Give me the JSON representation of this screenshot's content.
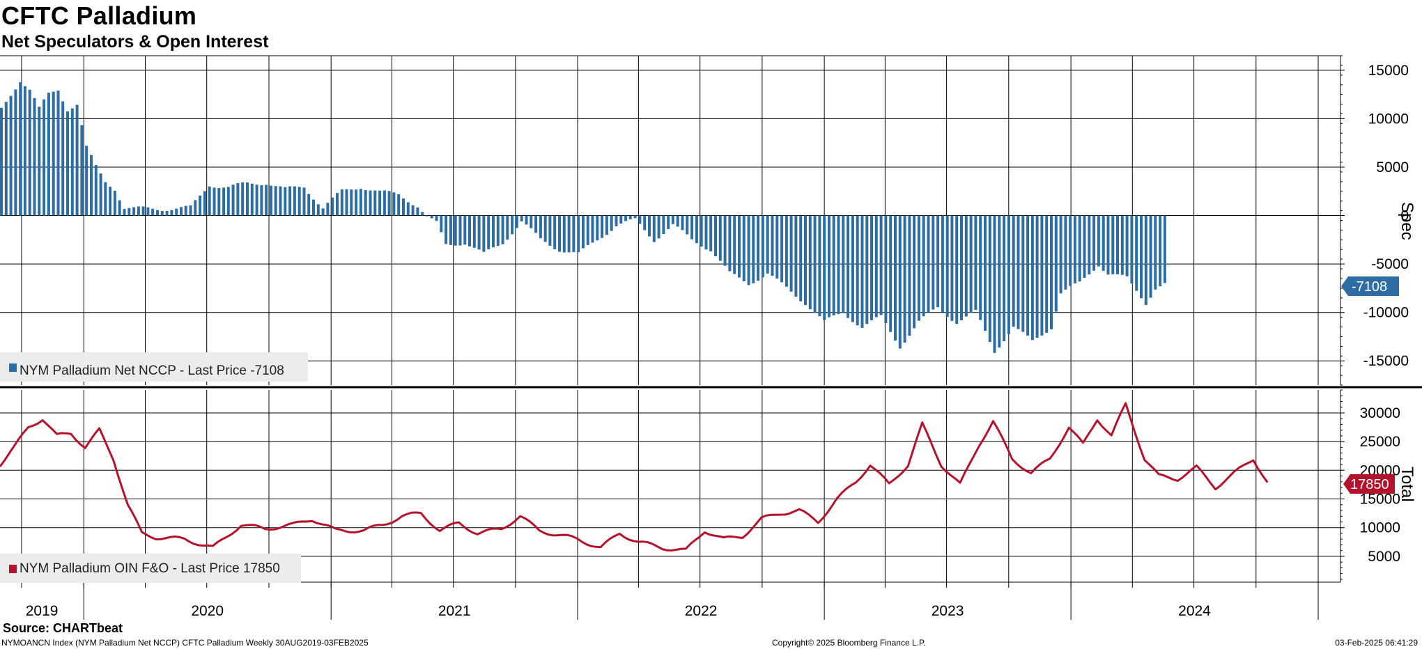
{
  "title": "CFTC Palladium",
  "subtitle": "Net Speculators & Open Interest",
  "source": "Source: CHARTbeat",
  "footer": {
    "left": "NYMOANCN Index (NYM Palladium Net NCCP) CFTC Palladium  Weekly 30AUG2019-03FEB2025",
    "center": "Copyright© 2025 Bloomberg Finance L.P.",
    "right": "03-Feb-2025 06:41:29"
  },
  "colors": {
    "spec": "#2e6da4",
    "total": "#b5122b",
    "grid": "#000000"
  },
  "chart_data": [
    {
      "type": "bar",
      "axis_label": "Spec",
      "legend": "NYM Palladium Net NCCP - Last Price -7108",
      "last_value": "-7108",
      "ylim": [
        -17500,
        16500
      ],
      "yticks": [
        15000,
        10000,
        5000,
        0,
        -5000,
        -10000,
        -15000
      ],
      "x_start": "2019-08-30",
      "x_end": "2025-02-03",
      "anchors": [
        [
          "2019-08-30",
          11000
        ],
        [
          "2019-09-13",
          12500
        ],
        [
          "2019-09-27",
          14000
        ],
        [
          "2019-10-11",
          13000
        ],
        [
          "2019-10-25",
          11000
        ],
        [
          "2019-11-08",
          12500
        ],
        [
          "2019-11-22",
          13000
        ],
        [
          "2019-12-06",
          11000
        ],
        [
          "2019-12-20",
          11500
        ],
        [
          "2020-01-03",
          7000
        ],
        [
          "2020-01-17",
          5000
        ],
        [
          "2020-01-31",
          3500
        ],
        [
          "2020-02-14",
          2800
        ],
        [
          "2020-02-28",
          800
        ],
        [
          "2020-03-13",
          700
        ],
        [
          "2020-04-24",
          700
        ],
        [
          "2020-06-05",
          800
        ],
        [
          "2020-06-19",
          2000
        ],
        [
          "2020-07-03",
          3200
        ],
        [
          "2020-07-31",
          2900
        ],
        [
          "2020-08-28",
          3300
        ],
        [
          "2020-09-25",
          3400
        ],
        [
          "2020-10-23",
          2700
        ],
        [
          "2020-11-20",
          3000
        ],
        [
          "2020-12-18",
          800
        ],
        [
          "2021-01-15",
          2500
        ],
        [
          "2021-02-12",
          3000
        ],
        [
          "2021-03-12",
          2400
        ],
        [
          "2021-04-09",
          2200
        ],
        [
          "2021-05-07",
          1000
        ],
        [
          "2021-05-21",
          -200
        ],
        [
          "2021-06-04",
          -800
        ],
        [
          "2021-06-18",
          -3000
        ],
        [
          "2021-07-16",
          -2800
        ],
        [
          "2021-08-13",
          -4000
        ],
        [
          "2021-09-10",
          -2800
        ],
        [
          "2021-10-08",
          -600
        ],
        [
          "2021-11-05",
          -2500
        ],
        [
          "2021-12-03",
          -3500
        ],
        [
          "2021-12-31",
          -4000
        ],
        [
          "2022-01-28",
          -2500
        ],
        [
          "2022-02-25",
          -1000
        ],
        [
          "2022-03-25",
          -500
        ],
        [
          "2022-04-22",
          -2500
        ],
        [
          "2022-05-20",
          -1000
        ],
        [
          "2022-06-17",
          -2500
        ],
        [
          "2022-07-15",
          -3500
        ],
        [
          "2022-08-12",
          -6000
        ],
        [
          "2022-09-09",
          -7000
        ],
        [
          "2022-10-07",
          -6000
        ],
        [
          "2022-11-04",
          -7500
        ],
        [
          "2022-12-02",
          -9000
        ],
        [
          "2022-12-30",
          -11000
        ],
        [
          "2023-01-27",
          -10000
        ],
        [
          "2023-02-24",
          -11500
        ],
        [
          "2023-03-24",
          -10500
        ],
        [
          "2023-04-21",
          -13500
        ],
        [
          "2023-05-19",
          -11000
        ],
        [
          "2023-06-16",
          -9500
        ],
        [
          "2023-07-14",
          -11000
        ],
        [
          "2023-08-11",
          -10000
        ],
        [
          "2023-09-08",
          -14000
        ],
        [
          "2023-10-06",
          -11500
        ],
        [
          "2023-11-03",
          -13000
        ],
        [
          "2023-12-01",
          -11500
        ],
        [
          "2023-12-15",
          -8000
        ],
        [
          "2024-01-12",
          -7000
        ],
        [
          "2024-02-09",
          -5000
        ],
        [
          "2024-02-23",
          -6000
        ],
        [
          "2024-03-22",
          -6500
        ],
        [
          "2024-04-19",
          -9000
        ],
        [
          "2024-05-03",
          -7500
        ],
        [
          "2024-05-17",
          -7108
        ]
      ]
    },
    {
      "type": "line",
      "axis_label": "Total",
      "legend": "NYM Palladium OIN F&O - Last Price 17850",
      "last_value": "17850",
      "ylim": [
        500,
        34000
      ],
      "yticks": [
        30000,
        25000,
        20000,
        15000,
        10000,
        5000
      ],
      "x_start": "2019-08-30",
      "x_end": "2025-02-03",
      "anchors": [
        [
          "2019-08-30",
          21000
        ],
        [
          "2019-09-20",
          24000
        ],
        [
          "2019-10-11",
          27500
        ],
        [
          "2019-11-01",
          29000
        ],
        [
          "2019-11-22",
          26000
        ],
        [
          "2019-12-13",
          26500
        ],
        [
          "2020-01-03",
          24000
        ],
        [
          "2020-01-24",
          27000
        ],
        [
          "2020-02-14",
          22000
        ],
        [
          "2020-03-06",
          14000
        ],
        [
          "2020-03-27",
          9000
        ],
        [
          "2020-04-17",
          8300
        ],
        [
          "2020-05-29",
          8000
        ],
        [
          "2020-07-10",
          6500
        ],
        [
          "2020-07-31",
          8500
        ],
        [
          "2020-08-21",
          10500
        ],
        [
          "2020-09-25",
          9800
        ],
        [
          "2020-11-06",
          10500
        ],
        [
          "2020-12-04",
          11500
        ],
        [
          "2021-01-08",
          9500
        ],
        [
          "2021-02-19",
          9500
        ],
        [
          "2021-03-19",
          10500
        ],
        [
          "2021-04-16",
          12000
        ],
        [
          "2021-05-14",
          12500
        ],
        [
          "2021-06-11",
          9500
        ],
        [
          "2021-07-09",
          10800
        ],
        [
          "2021-08-06",
          9000
        ],
        [
          "2021-09-10",
          9800
        ],
        [
          "2021-10-08",
          12000
        ],
        [
          "2021-11-05",
          9500
        ],
        [
          "2021-12-31",
          8000
        ],
        [
          "2022-02-04",
          6500
        ],
        [
          "2022-03-04",
          9000
        ],
        [
          "2022-04-01",
          7500
        ],
        [
          "2022-05-06",
          6500
        ],
        [
          "2022-06-10",
          6000
        ],
        [
          "2022-07-08",
          9500
        ],
        [
          "2022-08-05",
          8000
        ],
        [
          "2022-09-02",
          8500
        ],
        [
          "2022-09-30",
          11500
        ],
        [
          "2022-10-28",
          12500
        ],
        [
          "2022-11-25",
          13000
        ],
        [
          "2022-12-23",
          11000
        ],
        [
          "2023-01-20",
          15000
        ],
        [
          "2023-02-17",
          18000
        ],
        [
          "2023-03-10",
          21000
        ],
        [
          "2023-04-07",
          17500
        ],
        [
          "2023-05-05",
          21000
        ],
        [
          "2023-05-26",
          28000
        ],
        [
          "2023-06-23",
          21000
        ],
        [
          "2023-07-21",
          17500
        ],
        [
          "2023-08-18",
          24500
        ],
        [
          "2023-09-08",
          28500
        ],
        [
          "2023-10-06",
          22000
        ],
        [
          "2023-11-03",
          19500
        ],
        [
          "2023-12-01",
          22000
        ],
        [
          "2023-12-29",
          27500
        ],
        [
          "2024-01-19",
          24500
        ],
        [
          "2024-02-09",
          29000
        ],
        [
          "2024-03-01",
          26000
        ],
        [
          "2024-03-22",
          31500
        ],
        [
          "2024-04-19",
          22000
        ],
        [
          "2024-05-10",
          19000
        ],
        [
          "2024-06-07",
          18500
        ],
        [
          "2024-07-05",
          20500
        ],
        [
          "2024-08-02",
          17000
        ],
        [
          "2024-08-30",
          19500
        ],
        [
          "2024-09-27",
          22000
        ],
        [
          "2024-10-18",
          17850
        ]
      ]
    }
  ],
  "x_axis": {
    "ticks": [
      "2019",
      "2020",
      "2021",
      "2022",
      "2023",
      "2024"
    ]
  }
}
